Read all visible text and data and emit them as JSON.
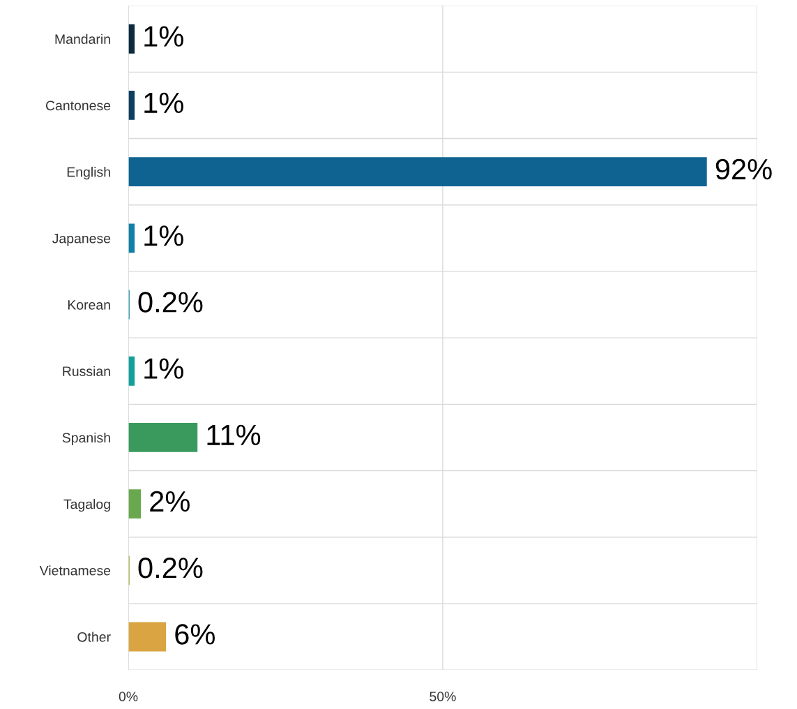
{
  "chart_data": {
    "type": "bar",
    "orientation": "horizontal",
    "categories": [
      "Mandarin",
      "Cantonese",
      "English",
      "Japanese",
      "Korean",
      "Russian",
      "Spanish",
      "Tagalog",
      "Vietnamese",
      "Other"
    ],
    "values": [
      1,
      1,
      92,
      1,
      0.2,
      1,
      11,
      2,
      0.2,
      6
    ],
    "colors": [
      "#0d2a3f",
      "#0e3f5e",
      "#0f6390",
      "#1280a8",
      "#1a8fa8",
      "#14a09a",
      "#3a9a5e",
      "#6aa84f",
      "#a6b04a",
      "#d9a441"
    ],
    "value_labels": [
      "1%",
      "1%",
      "92%",
      "1%",
      "0.2%",
      "1%",
      "11%",
      "2%",
      "0.2%",
      "6%"
    ],
    "xlim": [
      0,
      100
    ],
    "xticks": [
      {
        "value": 0,
        "label": "0%"
      },
      {
        "value": 50,
        "label": "50%"
      },
      {
        "value": 100,
        "label": null
      }
    ],
    "grid": true
  }
}
